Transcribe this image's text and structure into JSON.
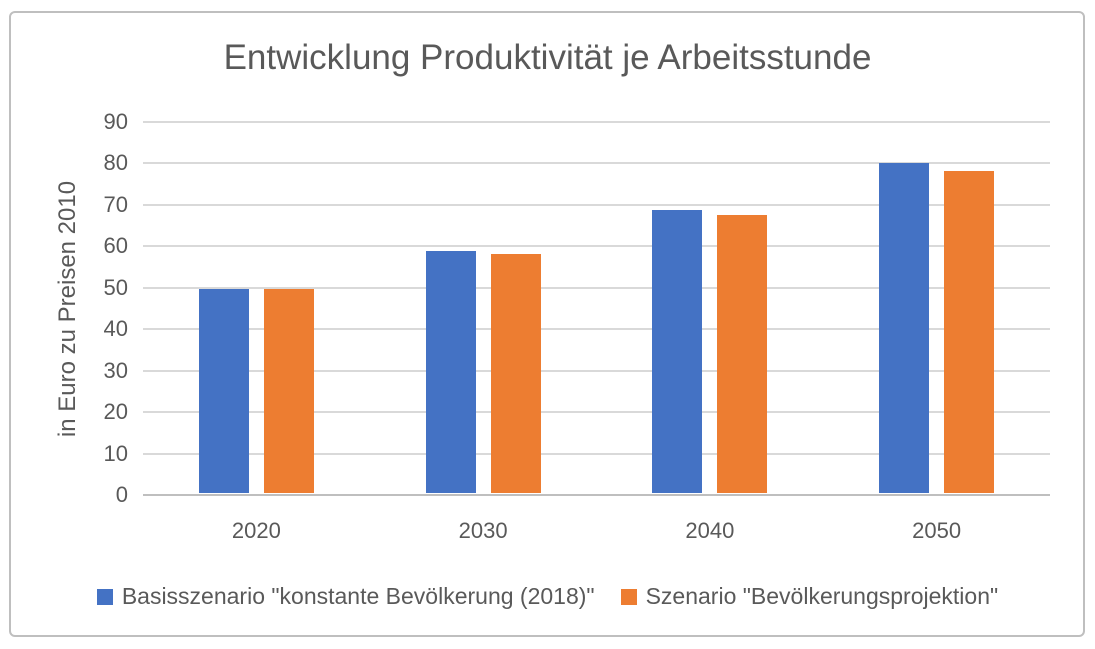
{
  "chart_data": {
    "type": "bar",
    "title": "Entwicklung Produktivität je Arbeitsstunde",
    "xlabel": "",
    "ylabel": "in Euro zu Preisen 2010",
    "categories": [
      "2020",
      "2030",
      "2040",
      "2050"
    ],
    "series": [
      {
        "name": "Basisszenario \"konstante Bevölkerung (2018)\"",
        "color": "#4472C4",
        "values": [
          49.2,
          58.3,
          68.2,
          79.6
        ]
      },
      {
        "name": "Szenario \"Bevölkerungsprojektion\"",
        "color": "#ED7D31",
        "values": [
          49.2,
          57.6,
          67.1,
          77.6
        ]
      }
    ],
    "ylim": [
      0,
      90
    ],
    "yticks": [
      0,
      10,
      20,
      30,
      40,
      50,
      60,
      70,
      80,
      90
    ],
    "grid": "horizontal",
    "legend_position": "bottom"
  },
  "colors": {
    "text": "#595959",
    "gridline": "#D9D9D9",
    "zero_axis": "#BFBFBF",
    "border": "#BFBFBF",
    "background": "#FFFFFF"
  }
}
